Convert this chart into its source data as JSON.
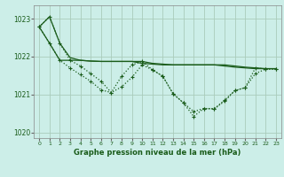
{
  "title": "Graphe pression niveau de la mer (hPa)",
  "bg_color": "#cceee8",
  "grid_color": "#aaccbb",
  "line_color": "#1a5c1a",
  "ylim": [
    1019.85,
    1023.35
  ],
  "xlim": [
    -0.5,
    23.5
  ],
  "yticks": [
    1020,
    1021,
    1022,
    1023
  ],
  "xticks": [
    0,
    1,
    2,
    3,
    4,
    5,
    6,
    7,
    8,
    9,
    10,
    11,
    12,
    13,
    14,
    15,
    16,
    17,
    18,
    19,
    20,
    21,
    22,
    23
  ],
  "s1_y": [
    1022.78,
    1023.05,
    1022.35,
    1021.9,
    1021.75,
    1021.55,
    1021.35,
    1021.05,
    1021.2,
    1021.45,
    1021.78,
    1021.65,
    1021.48,
    1021.02,
    1020.78,
    1020.55,
    1020.63,
    1020.62,
    1020.82,
    1021.1,
    1021.18,
    1021.55,
    1021.67,
    1021.67
  ],
  "s2_y": [
    1022.78,
    1023.05,
    1022.35,
    1021.97,
    1021.9,
    1021.88,
    1021.87,
    1021.87,
    1021.87,
    1021.87,
    1021.87,
    1021.82,
    1021.8,
    1021.78,
    1021.78,
    1021.78,
    1021.78,
    1021.78,
    1021.78,
    1021.75,
    1021.72,
    1021.7,
    1021.68,
    1021.68
  ],
  "s3_y": [
    1022.78,
    1022.35,
    1021.9,
    1021.7,
    1021.52,
    1021.35,
    1021.12,
    1021.05,
    1021.48,
    1021.78,
    1021.87,
    1021.65,
    1021.48,
    1021.02,
    1020.78,
    1020.42,
    1020.63,
    1020.62,
    1020.85,
    1021.1,
    1021.18,
    1021.7,
    1021.67,
    1021.67
  ],
  "s4_y": [
    1022.78,
    1022.35,
    1021.9,
    1021.9,
    1021.9,
    1021.88,
    1021.87,
    1021.87,
    1021.87,
    1021.87,
    1021.82,
    1021.8,
    1021.78,
    1021.78,
    1021.78,
    1021.78,
    1021.78,
    1021.78,
    1021.75,
    1021.72,
    1021.7,
    1021.68,
    1021.68,
    1021.68
  ]
}
